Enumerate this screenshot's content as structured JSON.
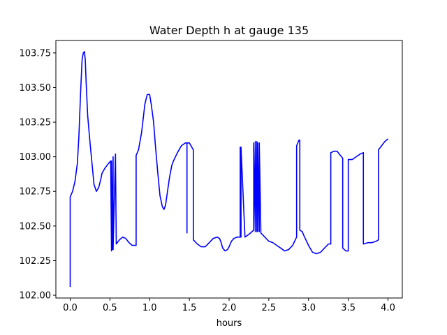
{
  "chart_data": {
    "type": "line",
    "title": "Water Depth h at gauge 135",
    "xlabel": "hours",
    "ylabel": "",
    "xlim": [
      -0.18,
      4.18
    ],
    "ylim": [
      101.98,
      103.84
    ],
    "xticks": [
      0.0,
      0.5,
      1.0,
      1.5,
      2.0,
      2.5,
      3.0,
      3.5,
      4.0
    ],
    "xtick_labels": [
      "0.0",
      "0.5",
      "1.0",
      "1.5",
      "2.0",
      "2.5",
      "3.0",
      "3.5",
      "4.0"
    ],
    "yticks": [
      102.0,
      102.25,
      102.5,
      102.75,
      103.0,
      103.25,
      103.5,
      103.75
    ],
    "ytick_labels": [
      "102.00",
      "102.25",
      "102.50",
      "102.75",
      "103.00",
      "103.25",
      "103.50",
      "103.75"
    ],
    "grid": false,
    "series": [
      {
        "color": "#0000ff",
        "x": [
          0.0,
          0.0,
          0.03,
          0.06,
          0.09,
          0.11,
          0.13,
          0.15,
          0.165,
          0.18,
          0.19,
          0.2,
          0.22,
          0.25,
          0.28,
          0.3,
          0.33,
          0.36,
          0.39,
          0.4,
          0.44,
          0.48,
          0.51,
          0.52,
          0.52,
          0.53,
          0.54,
          0.54,
          0.57,
          0.58,
          0.58,
          0.62,
          0.66,
          0.7,
          0.74,
          0.78,
          0.83,
          0.83,
          0.86,
          0.9,
          0.94,
          0.97,
          1.0,
          1.02,
          1.05,
          1.07,
          1.1,
          1.13,
          1.16,
          1.18,
          1.2,
          1.22,
          1.25,
          1.28,
          1.3,
          1.35,
          1.4,
          1.45,
          1.47,
          1.47,
          1.47,
          1.5,
          1.55,
          1.55,
          1.6,
          1.65,
          1.7,
          1.75,
          1.8,
          1.85,
          1.88,
          1.9,
          1.92,
          1.95,
          1.98,
          2.0,
          2.03,
          2.06,
          2.1,
          2.14,
          2.14,
          2.15,
          2.15,
          2.2,
          2.25,
          2.31,
          2.31,
          2.33,
          2.33,
          2.35,
          2.35,
          2.36,
          2.36,
          2.38,
          2.38,
          2.4,
          2.4,
          2.45,
          2.5,
          2.55,
          2.6,
          2.65,
          2.7,
          2.75,
          2.8,
          2.85,
          2.85,
          2.88,
          2.89,
          2.89,
          2.92,
          2.95,
          3.0,
          3.05,
          3.1,
          3.15,
          3.2,
          3.25,
          3.28,
          3.28,
          3.32,
          3.36,
          3.4,
          3.43,
          3.43,
          3.47,
          3.47,
          3.5,
          3.5,
          3.55,
          3.6,
          3.65,
          3.69,
          3.69,
          3.75,
          3.8,
          3.85,
          3.88,
          3.88,
          3.92,
          3.96,
          4.0
        ],
        "y": [
          102.06,
          102.71,
          102.75,
          102.82,
          102.95,
          103.15,
          103.45,
          103.7,
          103.75,
          103.76,
          103.7,
          103.55,
          103.3,
          103.1,
          102.92,
          102.8,
          102.75,
          102.78,
          102.85,
          102.88,
          102.92,
          102.95,
          102.97,
          102.32,
          102.97,
          102.33,
          103.0,
          102.33,
          103.02,
          102.37,
          102.37,
          102.4,
          102.42,
          102.41,
          102.38,
          102.36,
          102.36,
          103.01,
          103.05,
          103.18,
          103.38,
          103.45,
          103.45,
          103.38,
          103.25,
          103.1,
          102.9,
          102.72,
          102.64,
          102.62,
          102.65,
          102.73,
          102.85,
          102.94,
          102.97,
          103.03,
          103.08,
          103.1,
          103.1,
          102.45,
          103.1,
          103.1,
          103.05,
          102.4,
          102.37,
          102.35,
          102.35,
          102.38,
          102.41,
          102.42,
          102.41,
          102.38,
          102.34,
          102.32,
          102.33,
          102.35,
          102.39,
          102.41,
          102.42,
          102.42,
          103.07,
          102.42,
          103.07,
          102.42,
          102.44,
          102.47,
          103.1,
          102.46,
          103.11,
          102.46,
          103.11,
          102.46,
          103.1,
          102.46,
          103.1,
          102.46,
          102.45,
          102.42,
          102.39,
          102.38,
          102.36,
          102.34,
          102.32,
          102.33,
          102.36,
          102.42,
          103.08,
          103.12,
          103.12,
          102.47,
          102.46,
          102.42,
          102.36,
          102.31,
          102.3,
          102.31,
          102.34,
          102.37,
          102.37,
          103.03,
          103.04,
          103.04,
          103.01,
          102.99,
          102.34,
          102.32,
          102.32,
          102.32,
          102.98,
          102.98,
          103.0,
          103.02,
          103.03,
          102.37,
          102.38,
          102.38,
          102.39,
          102.4,
          103.05,
          103.08,
          103.11,
          103.13
        ]
      }
    ]
  }
}
